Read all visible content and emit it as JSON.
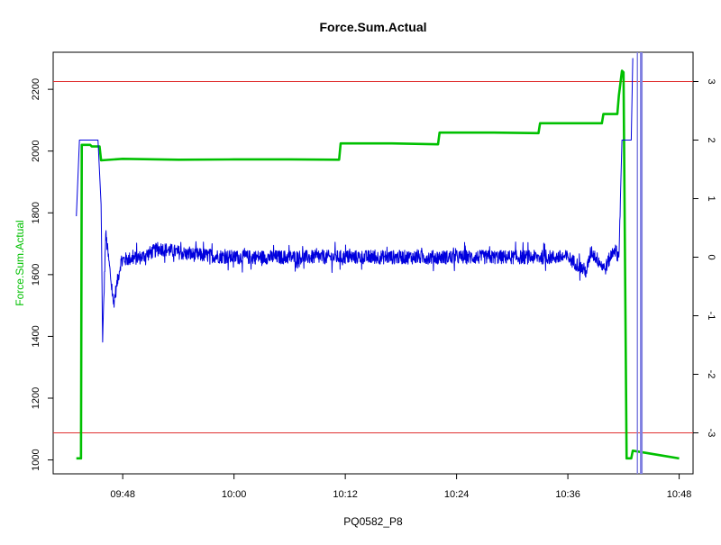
{
  "chart_data": {
    "type": "line",
    "title": "Force.Sum.Actual",
    "xlabel": "PQ0582_P8",
    "ylabel": "Force.Sum.Actual",
    "colors": {
      "left_series": "#00c000",
      "right_series": "#0000dd",
      "reference_lines": "#e03030",
      "cursor_lines": "#8080e0"
    },
    "x_axis": {
      "unit": "time of day (HH:MM)",
      "range": [
        "09:40:30",
        "10:49:30"
      ],
      "tick_labels": [
        "09:48",
        "10:00",
        "10:12",
        "10:24",
        "10:36",
        "10:48"
      ]
    },
    "y_left": {
      "range": [
        955,
        2320
      ],
      "tick_values": [
        1000,
        1200,
        1400,
        1600,
        1800,
        2000,
        2200
      ],
      "tick_labels": [
        "1000",
        "1200",
        "1400",
        "1600",
        "1800",
        "2000",
        "2200"
      ]
    },
    "y_right": {
      "range": [
        -3.7,
        3.5
      ],
      "tick_values": [
        -3,
        -2,
        -1,
        0,
        1,
        2,
        3
      ],
      "tick_labels": [
        "-3",
        "-2",
        "-1",
        "0",
        "1",
        "2",
        "3"
      ]
    },
    "reference_lines": [
      {
        "axis": "right",
        "value": 3.0
      },
      {
        "axis": "right",
        "value": -3.0
      }
    ],
    "cursor_lines_x": [
      "10:43:30",
      "10:43:55"
    ],
    "series": [
      {
        "axis": "left",
        "style": "line",
        "points": [
          [
            "09:43:00",
            1005
          ],
          [
            "09:43:30",
            1005
          ],
          [
            "09:43:35",
            2020
          ],
          [
            "09:44:30",
            2020
          ],
          [
            "09:44:40",
            2015
          ],
          [
            "09:45:30",
            2015
          ],
          [
            "09:45:40",
            1970
          ],
          [
            "09:48:00",
            1975
          ],
          [
            "09:54:00",
            1972
          ],
          [
            "10:00:00",
            1973
          ],
          [
            "10:06:00",
            1973
          ],
          [
            "10:11:20",
            1972
          ],
          [
            "10:11:30",
            2025
          ],
          [
            "10:17:00",
            2025
          ],
          [
            "10:22:00",
            2022
          ],
          [
            "10:22:10",
            2060
          ],
          [
            "10:28:00",
            2060
          ],
          [
            "10:32:50",
            2058
          ],
          [
            "10:33:00",
            2090
          ],
          [
            "10:38:00",
            2090
          ],
          [
            "10:39:40",
            2090
          ],
          [
            "10:39:50",
            2120
          ],
          [
            "10:41:20",
            2120
          ],
          [
            "10:41:30",
            2180
          ],
          [
            "10:41:50",
            2260
          ],
          [
            "10:42:00",
            2255
          ],
          [
            "10:42:20",
            1005
          ],
          [
            "10:42:50",
            1005
          ],
          [
            "10:43:00",
            1030
          ],
          [
            "10:46:00",
            1015
          ],
          [
            "10:48:00",
            1005
          ]
        ]
      },
      {
        "axis": "right",
        "style": "noisy-line",
        "noise_amplitude": 0.12,
        "noise_until": "10:41:40",
        "points": [
          [
            "09:43:00",
            0.7
          ],
          [
            "09:43:20",
            2.0
          ],
          [
            "09:45:20",
            2.0
          ],
          [
            "09:45:40",
            0.9
          ],
          [
            "09:45:50",
            -1.45
          ],
          [
            "09:46:10",
            0.4
          ],
          [
            "09:46:40",
            -0.3
          ],
          [
            "09:47:00",
            -0.8
          ],
          [
            "09:47:20",
            -0.5
          ],
          [
            "09:47:50",
            -0.05
          ],
          [
            "09:50:00",
            0.0
          ],
          [
            "09:52:00",
            0.15
          ],
          [
            "09:55:00",
            0.05
          ],
          [
            "10:00:00",
            0.0
          ],
          [
            "10:10:00",
            0.0
          ],
          [
            "10:20:00",
            0.0
          ],
          [
            "10:30:00",
            0.0
          ],
          [
            "10:36:00",
            0.0
          ],
          [
            "10:38:00",
            -0.25
          ],
          [
            "10:38:30",
            0.1
          ],
          [
            "10:40:00",
            -0.2
          ],
          [
            "10:41:00",
            0.15
          ],
          [
            "10:41:30",
            0.0
          ],
          [
            "10:41:40",
            1.0
          ],
          [
            "10:41:50",
            2.0
          ],
          [
            "10:42:50",
            2.0
          ],
          [
            "10:43:00",
            3.4
          ]
        ]
      }
    ]
  }
}
